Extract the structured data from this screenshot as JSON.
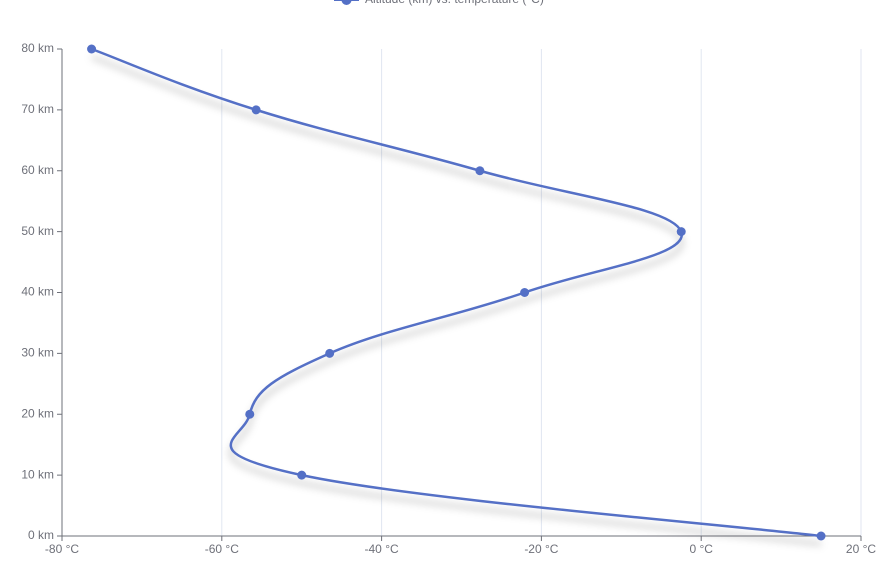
{
  "chart_data": {
    "type": "line",
    "legend": "Altitude (km) vs. temperature (°C)",
    "x": [
      15,
      -50,
      -56.5,
      -46.5,
      -22.1,
      -2.5,
      -27.7,
      -55.7,
      -76.3
    ],
    "series": [
      {
        "name": "Altitude (km) vs. temperature (°C)",
        "color": "#5470c6",
        "values": [
          0,
          10,
          20,
          30,
          40,
          50,
          60,
          70,
          80
        ]
      }
    ],
    "xlim": [
      -80,
      20
    ],
    "xticks": [
      {
        "value": -80,
        "label": "-80 °C"
      },
      {
        "value": -60,
        "label": "-60 °C"
      },
      {
        "value": -40,
        "label": "-40 °C"
      },
      {
        "value": -20,
        "label": "-20 °C"
      },
      {
        "value": 0,
        "label": "0 °C"
      },
      {
        "value": 20,
        "label": "20 °C"
      }
    ],
    "ylim": [
      0,
      80
    ],
    "yticks": [
      {
        "value": 0,
        "label": "0 km"
      },
      {
        "value": 10,
        "label": "10 km"
      },
      {
        "value": 20,
        "label": "20 km"
      },
      {
        "value": 30,
        "label": "30 km"
      },
      {
        "value": 40,
        "label": "40 km"
      },
      {
        "value": 50,
        "label": "50 km"
      },
      {
        "value": 60,
        "label": "60 km"
      },
      {
        "value": 70,
        "label": "70 km"
      },
      {
        "value": 80,
        "label": "80 km"
      }
    ],
    "grid": true,
    "smooth": true
  }
}
